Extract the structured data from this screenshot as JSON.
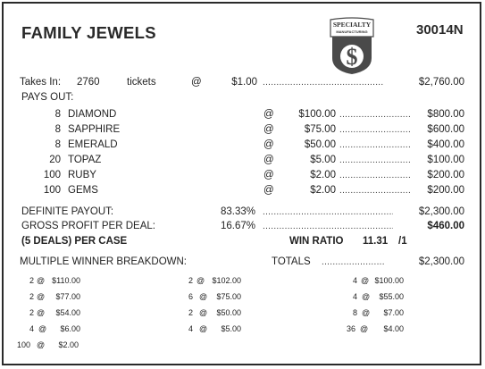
{
  "header": {
    "title": "FAMILY JEWELS",
    "form_number": "30014N",
    "logo_top": "SPECIALTY",
    "logo_sub": "MANUFACTURING",
    "logo_symbol": "$"
  },
  "takes_in": {
    "label": "Takes In:",
    "tickets": "2760",
    "tickets_word": "tickets",
    "at": "@",
    "price": "$1.00",
    "total": "$2,760.00"
  },
  "pays_out": {
    "label": "PAYS OUT:",
    "rows": [
      {
        "count": "8",
        "name": "DIAMOND",
        "at": "@",
        "amount": "$100.00",
        "total": "$800.00"
      },
      {
        "count": "8",
        "name": "SAPPHIRE",
        "at": "@",
        "amount": "$75.00",
        "total": "$600.00"
      },
      {
        "count": "8",
        "name": "EMERALD",
        "at": "@",
        "amount": "$50.00",
        "total": "$400.00"
      },
      {
        "count": "20",
        "name": "TOPAZ",
        "at": "@",
        "amount": "$5.00",
        "total": "$100.00"
      },
      {
        "count": "100",
        "name": "RUBY",
        "at": "@",
        "amount": "$2.00",
        "total": "$200.00"
      },
      {
        "count": "100",
        "name": "GEMS",
        "at": "@",
        "amount": "$2.00",
        "total": "$200.00"
      }
    ]
  },
  "summary": {
    "payout_label": "DEFINITE PAYOUT:",
    "payout_pct": "83.33%",
    "payout_total": "$2,300.00",
    "profit_label": "GROSS PROFIT PER DEAL:",
    "profit_pct": "16.67%",
    "profit_total": "$460.00",
    "case_label": "(5 DEALS) PER CASE",
    "win_ratio_label": "WIN RATIO",
    "win_ratio_value": "11.31",
    "win_ratio_suffix": "/1"
  },
  "multi": {
    "label": "MULTIPLE WINNER BREAKDOWN:",
    "totals_label": "TOTALS",
    "totals_value": "$2,300.00",
    "rows": [
      [
        {
          "count": "2",
          "at": "@",
          "amount": "$110.00"
        },
        {
          "count": "2",
          "at": "@",
          "amount": "$102.00"
        },
        {
          "count": "4",
          "at": "@",
          "amount": "$100.00"
        }
      ],
      [
        {
          "count": "2",
          "at": "@",
          "amount": "$77.00"
        },
        {
          "count": "6",
          "at": "@",
          "amount": "$75.00"
        },
        {
          "count": "4",
          "at": "@",
          "amount": "$55.00"
        }
      ],
      [
        {
          "count": "2",
          "at": "@",
          "amount": "$54.00"
        },
        {
          "count": "2",
          "at": "@",
          "amount": "$50.00"
        },
        {
          "count": "8",
          "at": "@",
          "amount": "$7.00"
        }
      ],
      [
        {
          "count": "4",
          "at": "@",
          "amount": "$6.00"
        },
        {
          "count": "4",
          "at": "@",
          "amount": "$5.00"
        },
        {
          "count": "36",
          "at": "@",
          "amount": "$4.00"
        }
      ],
      [
        {
          "count": "100",
          "at": "@",
          "amount": "$2.00"
        }
      ]
    ]
  }
}
